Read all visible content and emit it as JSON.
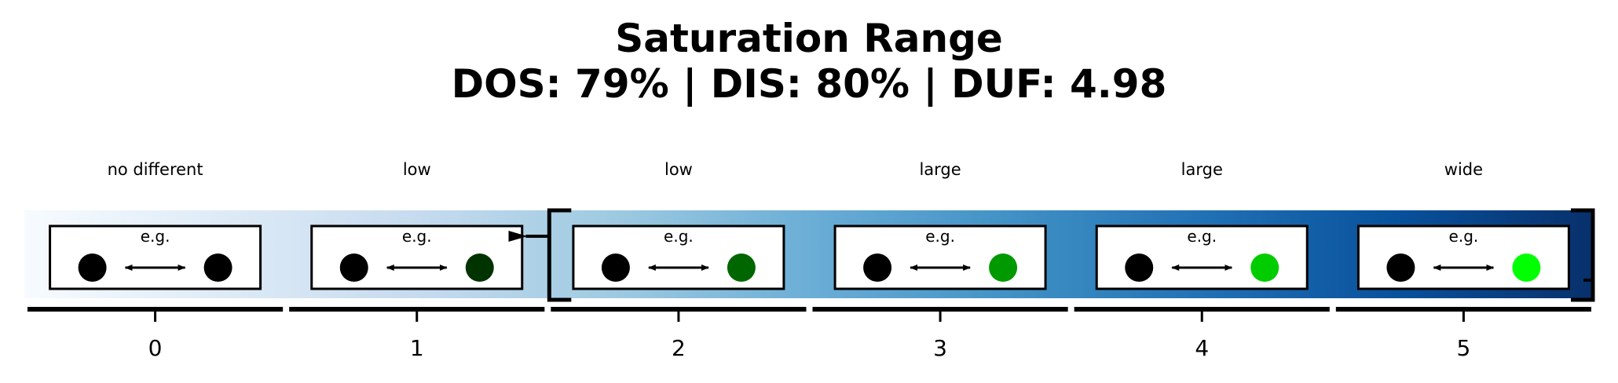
{
  "chart_data": {
    "type": "other",
    "title_line1": "Saturation Range",
    "title_line2": "DOS: 79% | DIS: 80% | DUF: 4.98",
    "levels": [
      0,
      1,
      2,
      3,
      4,
      5
    ],
    "level_labels": [
      "no different",
      "low",
      "low",
      "large",
      "large",
      "wide"
    ],
    "example_label": "e.g.",
    "example_colors": [
      "#000000",
      "#003300",
      "#006600",
      "#009900",
      "#00cc00",
      "#00ff00"
    ],
    "reference_color": "#000000",
    "range": [
      2,
      5
    ],
    "colormap": "Blues",
    "grid": false
  }
}
